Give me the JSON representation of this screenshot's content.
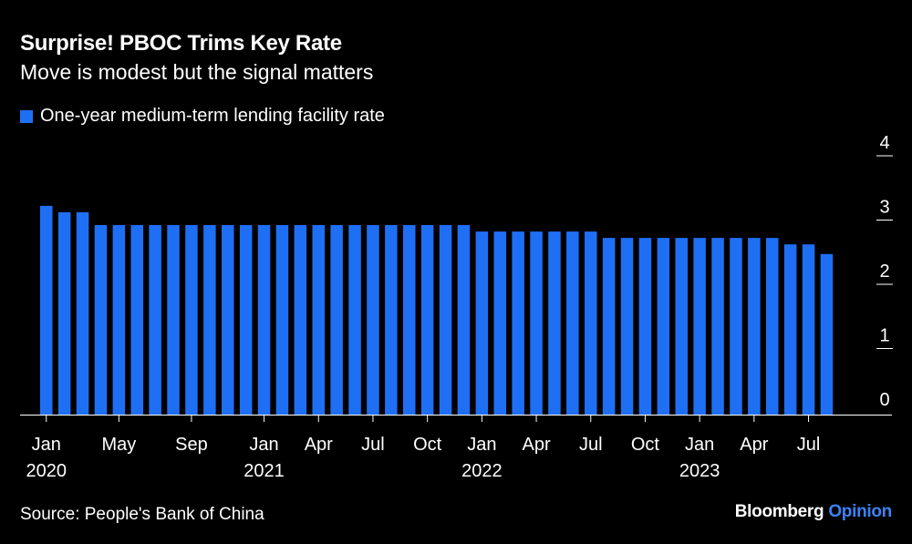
{
  "header": {
    "title": "Surprise! PBOC Trims Key Rate",
    "subtitle": "Move is modest but the signal matters"
  },
  "legend": {
    "label": "One-year medium-term lending facility rate"
  },
  "footer": {
    "source": "Source: People's Bank of China",
    "brand_main": "Bloomberg",
    "brand_accent": "Opinion"
  },
  "colors": {
    "bar": "#1f6ff5",
    "background": "#000000",
    "accent": "#3b82f6"
  },
  "chart_data": {
    "type": "bar",
    "title": "Surprise! PBOC Trims Key Rate",
    "subtitle": "Move is modest but the signal matters",
    "ylim": [
      0,
      4
    ],
    "yticks": [
      0,
      1,
      2,
      3,
      4
    ],
    "y_axis_side": "right",
    "series": [
      {
        "name": "One-year medium-term lending facility rate",
        "start": "2020-01",
        "values": [
          3.25,
          3.15,
          3.15,
          2.95,
          2.95,
          2.95,
          2.95,
          2.95,
          2.95,
          2.95,
          2.95,
          2.95,
          2.95,
          2.95,
          2.95,
          2.95,
          2.95,
          2.95,
          2.95,
          2.95,
          2.95,
          2.95,
          2.95,
          2.95,
          2.85,
          2.85,
          2.85,
          2.85,
          2.85,
          2.85,
          2.85,
          2.75,
          2.75,
          2.75,
          2.75,
          2.75,
          2.75,
          2.75,
          2.75,
          2.75,
          2.75,
          2.65,
          2.65,
          2.5
        ]
      }
    ],
    "x_tick_labels": [
      {
        "index": 0,
        "month": "Jan",
        "year": "2020"
      },
      {
        "index": 4,
        "month": "May",
        "year": ""
      },
      {
        "index": 8,
        "month": "Sep",
        "year": ""
      },
      {
        "index": 12,
        "month": "Jan",
        "year": "2021"
      },
      {
        "index": 15,
        "month": "Apr",
        "year": ""
      },
      {
        "index": 18,
        "month": "Jul",
        "year": ""
      },
      {
        "index": 21,
        "month": "Oct",
        "year": ""
      },
      {
        "index": 24,
        "month": "Jan",
        "year": "2022"
      },
      {
        "index": 27,
        "month": "Apr",
        "year": ""
      },
      {
        "index": 30,
        "month": "Jul",
        "year": ""
      },
      {
        "index": 33,
        "month": "Oct",
        "year": ""
      },
      {
        "index": 36,
        "month": "Jan",
        "year": "2023"
      },
      {
        "index": 39,
        "month": "Apr",
        "year": ""
      },
      {
        "index": 42,
        "month": "Jul",
        "year": ""
      }
    ]
  }
}
